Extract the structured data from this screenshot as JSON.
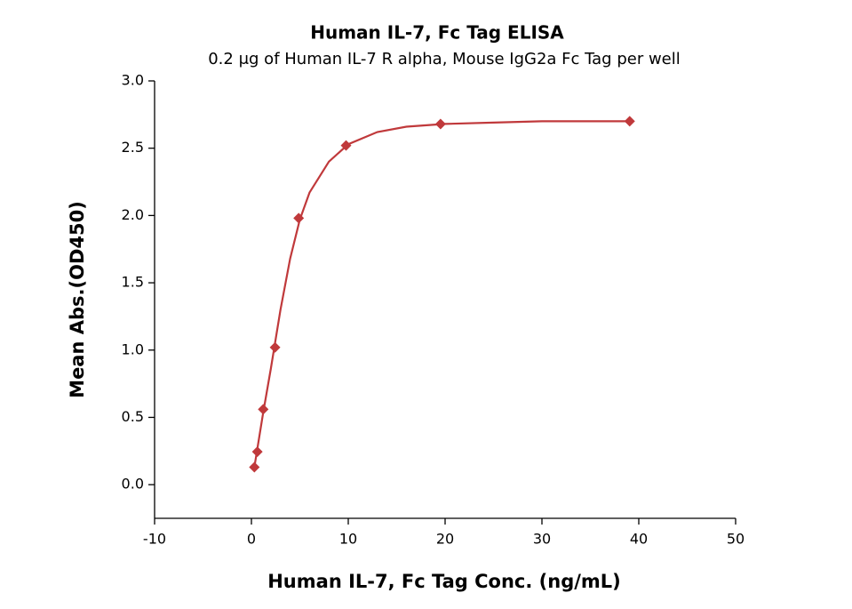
{
  "chart_data": {
    "type": "scatter",
    "title": "Human IL-7, Fc Tag ELISA",
    "subtitle": "0.2 μg of Human IL-7 R alpha, Mouse IgG2a Fc Tag per well",
    "x_label": "Human IL-7, Fc Tag Conc. (ng/mL)",
    "y_label": "Mean Abs.(OD450)",
    "color": "#c0393b",
    "x": [
      0.305,
      0.61,
      1.22,
      2.44,
      4.88,
      9.77,
      19.53,
      39.06
    ],
    "values": [
      0.13,
      0.245,
      0.56,
      1.02,
      1.98,
      2.52,
      2.68,
      2.7
    ],
    "fit": {
      "x": [
        0.3,
        0.6,
        1.2,
        2,
        3,
        4,
        5,
        6,
        8,
        10,
        13,
        16,
        20,
        25,
        30,
        39
      ],
      "values": [
        0.13,
        0.26,
        0.53,
        0.86,
        1.3,
        1.68,
        1.97,
        2.17,
        2.4,
        2.53,
        2.62,
        2.66,
        2.68,
        2.69,
        2.7,
        2.7
      ]
    },
    "xlim": [
      -10,
      50
    ],
    "xticks": [
      -10,
      0,
      10,
      20,
      30,
      40,
      50
    ],
    "ylim": [
      -0.25,
      3.0
    ],
    "yticks": [
      {
        "value": 0,
        "label": "0.0"
      },
      0.5,
      {
        "value": 1,
        "label": "1.0"
      },
      1.5,
      {
        "value": 2,
        "label": "2.0"
      },
      2.5,
      {
        "value": 3,
        "label": "3.0"
      }
    ],
    "grid": false
  }
}
